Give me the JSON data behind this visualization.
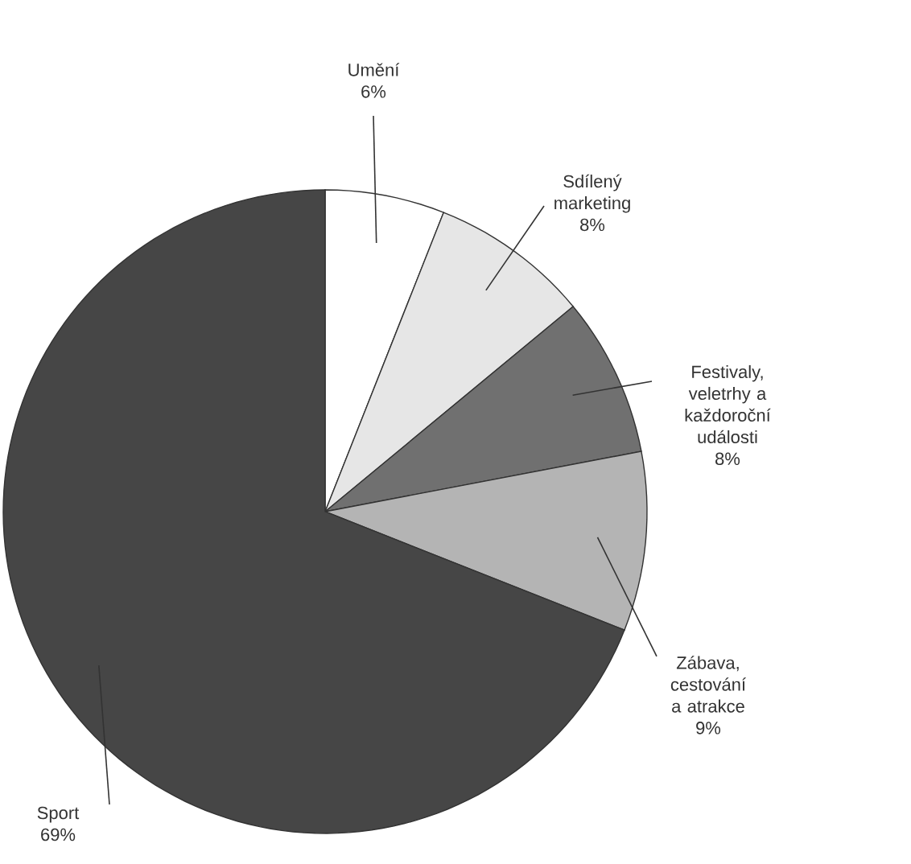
{
  "chart_data": {
    "type": "pie",
    "categories": [
      "Umění",
      "Sdílený marketing",
      "Festivaly, veletrhy a každoroční události",
      "Zábava, cestování a atrakce",
      "Sport"
    ],
    "values": [
      6,
      8,
      8,
      9,
      69
    ],
    "value_labels": [
      "6%",
      "8%",
      "8%",
      "9%",
      "69%"
    ],
    "colors": [
      "#ffffff",
      "#e6e6e6",
      "#707070",
      "#b4b4b4",
      "#464646"
    ]
  }
}
